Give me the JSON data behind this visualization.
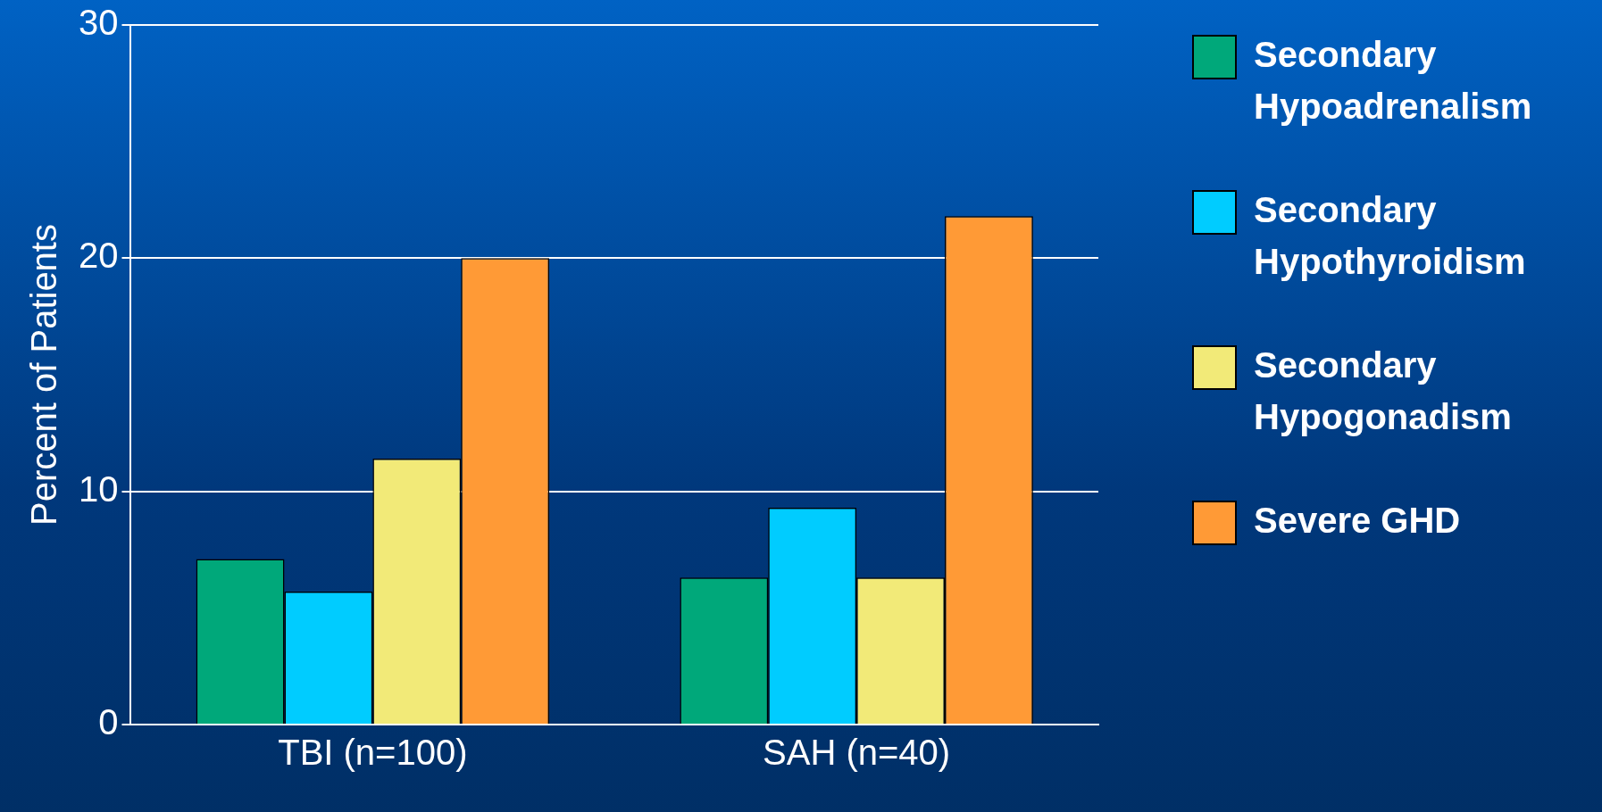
{
  "chart_data": {
    "type": "bar",
    "ylabel": "Percent of Patients",
    "categories": [
      "TBI (n=100)",
      "SAH (n=40)"
    ],
    "series": [
      {
        "name": "Secondary Hypoadrenalism",
        "color": "#00a87a",
        "values": [
          7.1,
          6.3
        ]
      },
      {
        "name": "Secondary Hypothyroidism",
        "color": "#00ccff",
        "values": [
          5.7,
          9.3
        ]
      },
      {
        "name": "Secondary Hypogonadism",
        "color": "#f2ea78",
        "values": [
          11.4,
          6.3
        ]
      },
      {
        "name": "Severe GHD",
        "color": "#ff9a36",
        "values": [
          20.0,
          21.8
        ]
      }
    ],
    "ylim": [
      0,
      30
    ],
    "yticks": [
      0,
      10,
      20,
      30
    ],
    "grid": "y",
    "legend": "right"
  }
}
